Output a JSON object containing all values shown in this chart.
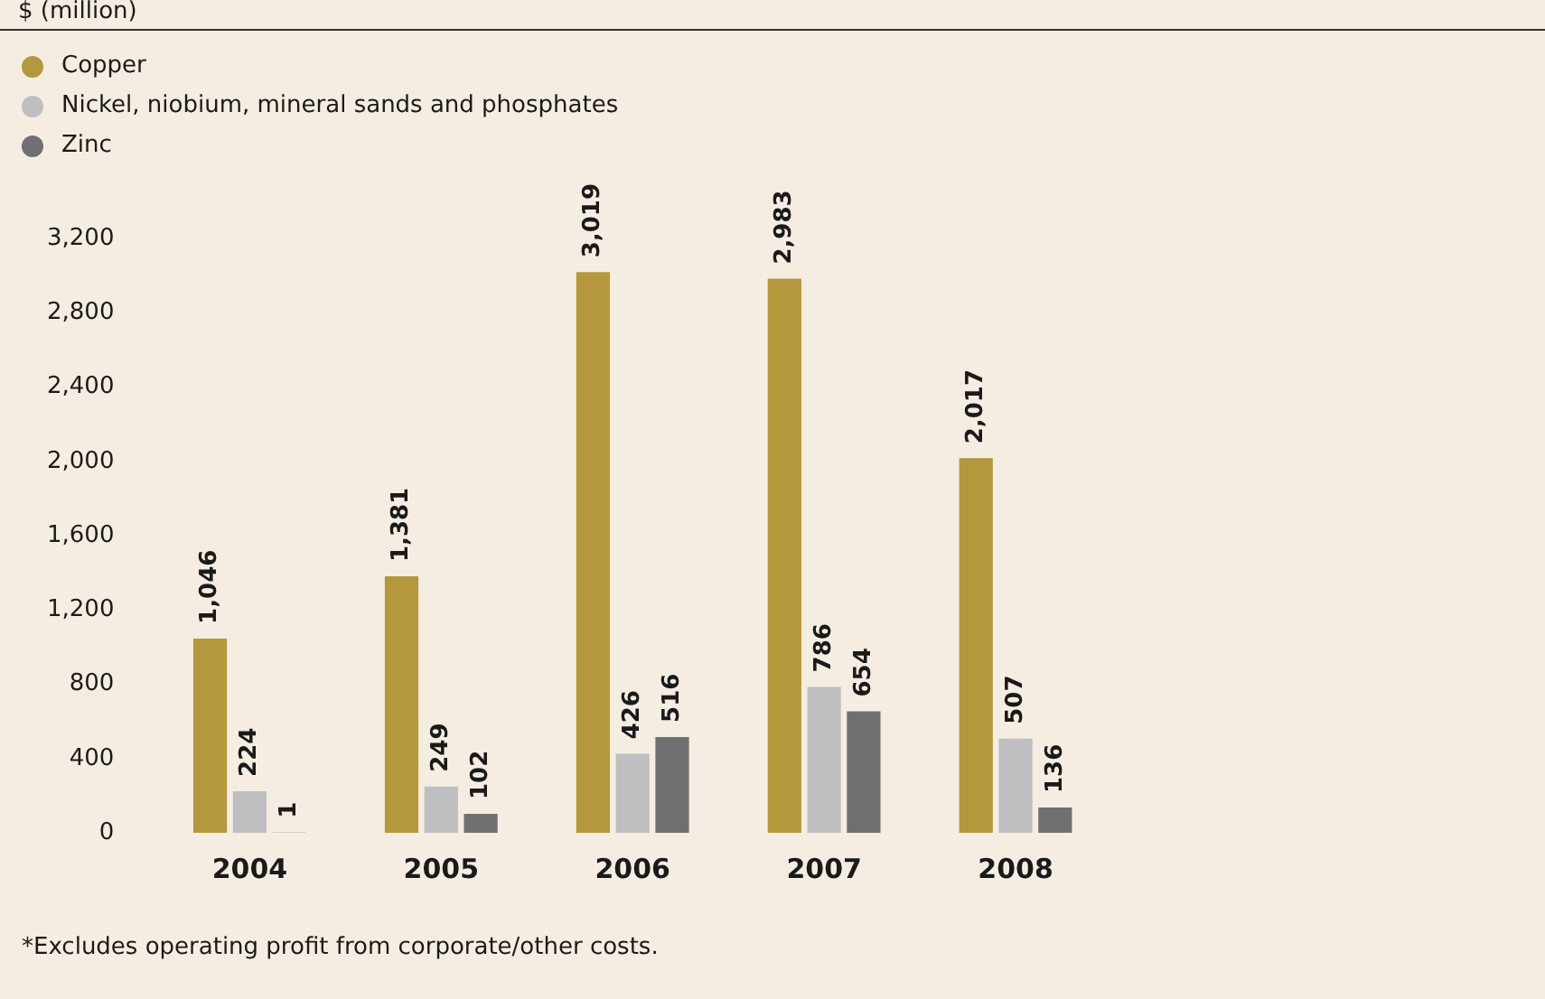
{
  "chart_data": {
    "type": "bar",
    "categories": [
      "2004",
      "2005",
      "2006",
      "2007",
      "2008"
    ],
    "series": [
      {
        "name": "Copper",
        "color": "#b5973e",
        "values": [
          1046,
          1381,
          3019,
          2983,
          2017
        ],
        "value_labels": [
          "1,046",
          "1,381",
          "3,019",
          "2,983",
          "2,017"
        ]
      },
      {
        "name": "Nickel, niobium, mineral sands and phosphates",
        "color": "#bfbfc1",
        "values": [
          224,
          249,
          426,
          786,
          507
        ],
        "value_labels": [
          "224",
          "249",
          "426",
          "786",
          "507"
        ]
      },
      {
        "name": "Zinc",
        "color": "#707072",
        "values": [
          1,
          102,
          516,
          654,
          136
        ],
        "value_labels": [
          "1",
          "102",
          "516",
          "654",
          "136"
        ]
      }
    ],
    "ylim": [
      0,
      3200
    ],
    "yticks": [
      0,
      400,
      800,
      {
        "value": 1200,
        "label": "1,200"
      },
      {
        "value": 1600,
        "label": "1,600"
      },
      {
        "value": 2000,
        "label": "2,000"
      },
      {
        "value": 2400,
        "label": "2,400"
      },
      {
        "value": 2800,
        "label": "2,800"
      },
      {
        "value": 3200,
        "label": "3,200"
      }
    ],
    "grid": false,
    "legend": "top left",
    "annotations": [
      "$ (million)",
      "*Excludes operating profit from corporate/other costs."
    ]
  }
}
